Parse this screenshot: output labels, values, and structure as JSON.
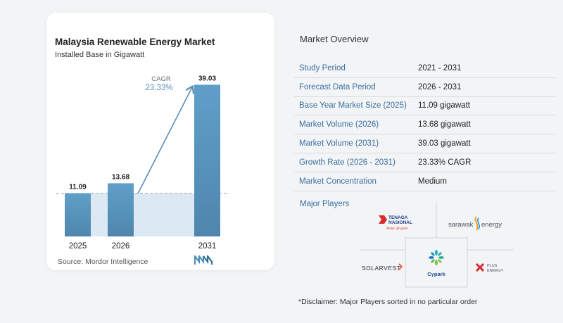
{
  "chart_data": {
    "type": "bar",
    "title": "Malaysia Renewable Energy Market",
    "subtitle": "Installed Base in Gigawatt",
    "categories": [
      "2025",
      "2026",
      "2031"
    ],
    "values": [
      11.09,
      13.68,
      39.03
    ],
    "value_labels": [
      "11.09",
      "13.68",
      "39.03"
    ],
    "ylim": [
      0,
      42
    ],
    "cagr_label": "CAGR",
    "cagr_value": "23.33%",
    "bar_colors": [
      "#5b9cc4",
      "#5b9cc4",
      "#5b9cc4"
    ],
    "grid": false,
    "legend": "none"
  },
  "source": "Source:  Mordor Intelligence",
  "overview": {
    "title": "Market Overview",
    "rows": [
      {
        "label": "Study Period",
        "value": "2021 - 2031"
      },
      {
        "label": "Forecast Data Period",
        "value": "2026 - 2031"
      },
      {
        "label": "Base Year Market Size (2025)",
        "value": "11.09 gigawatt"
      },
      {
        "label": "Market Volume (2026)",
        "value": "13.68 gigawatt"
      },
      {
        "label": "Market Volume (2031)",
        "value": "39.03 gigawatt"
      },
      {
        "label": "Growth Rate (2026 - 2031)",
        "value": "23.33% CAGR"
      },
      {
        "label": "Market Concentration",
        "value": "Medium"
      }
    ]
  },
  "players": {
    "title": "Major Players",
    "logos": {
      "tnb_line1": "TENAGA",
      "tnb_line2": "NASIONAL",
      "tnb_tagline": "Better. Brighter.",
      "sarawak_a": "sarawak",
      "sarawak_b": "energy",
      "solarvest": "SOLARVEST",
      "cypark": "Cypark",
      "plus_line1": "PLUS",
      "plus_line2": "ENERGY"
    }
  },
  "disclaimer": "*Disclaimer: Major Players sorted in no particular order",
  "colors": {
    "accent": "#3a6fa0",
    "bar": "#5b9cc4",
    "shade": "#dbe8f2"
  }
}
